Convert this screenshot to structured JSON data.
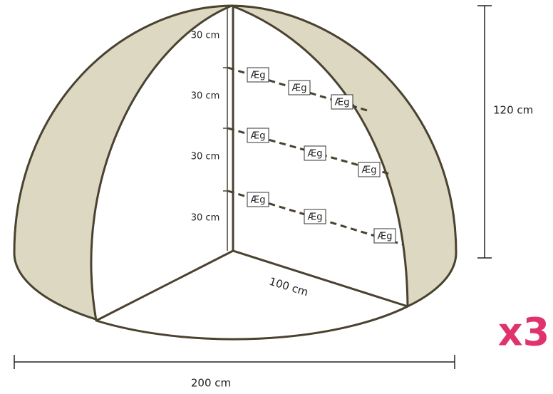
{
  "height_segments": [
    "30 cm",
    "30 cm",
    "30 cm",
    "30 cm"
  ],
  "eggs": [
    "Æg",
    "Æg",
    "Æg",
    "Æg",
    "Æg",
    "Æg",
    "Æg",
    "Æg",
    "Æg"
  ],
  "height_label": "120 cm",
  "radius_label": "100 cm",
  "width_label": "200 cm",
  "multiplier": "x3"
}
